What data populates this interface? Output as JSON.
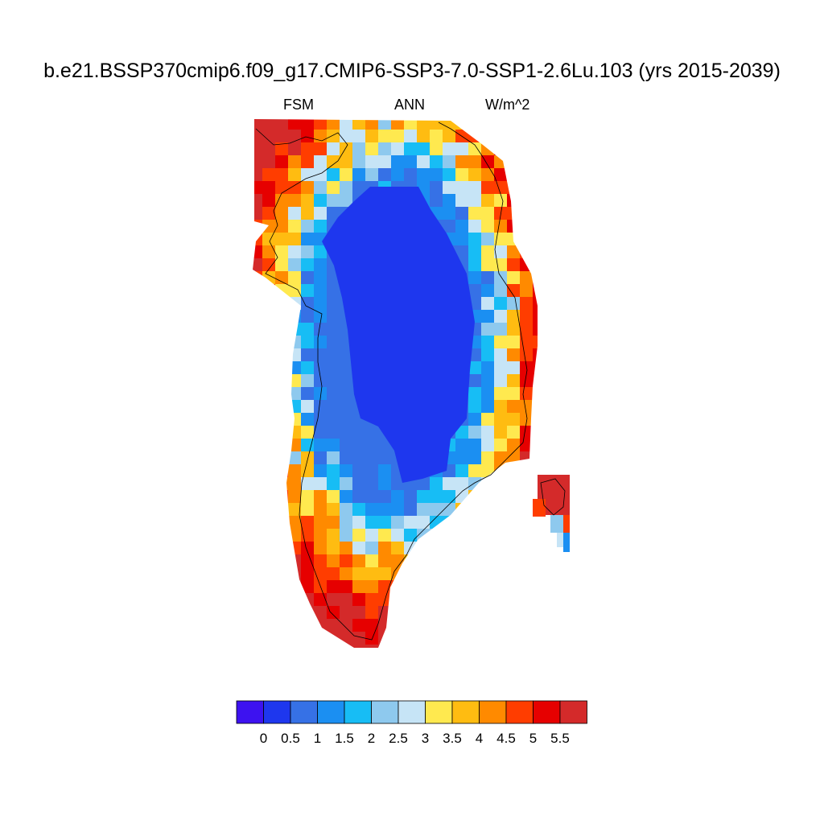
{
  "title": "b.e21.BSSP370cmip6.f09_g17.CMIP6-SSP3-7.0-SSP1-2.6Lu.103 (yrs 2015-2039)",
  "subtitles": {
    "left": "FSM",
    "center": "ANN",
    "right": "W/m^2"
  },
  "chart_data": {
    "type": "heatmap",
    "title": "b.e21.BSSP370cmip6.f09_g17.CMIP6-SSP3-7.0-SSP1-2.6Lu.103 (yrs 2015-2039)",
    "variable": "FSM",
    "season": "ANN",
    "units": "W/m^2",
    "region": "Greenland",
    "colorbar": {
      "levels": [
        "0",
        "0.5",
        "1",
        "1.5",
        "2",
        "2.5",
        "3",
        "3.5",
        "4",
        "4.5",
        "5",
        "5.5"
      ],
      "colors": [
        "#3d12f0",
        "#1e37ee",
        "#3671e6",
        "#1b8ff2",
        "#17bdf5",
        "#8ec9ee",
        "#c6e4f6",
        "#ffe94f",
        "#ffbc11",
        "#ff8a00",
        "#ff3d00",
        "#e60000",
        "#d42a2a"
      ]
    },
    "summary": "Interior ice sheet values below 0.5 W/m^2; margins above 5.5 W/m^2"
  }
}
